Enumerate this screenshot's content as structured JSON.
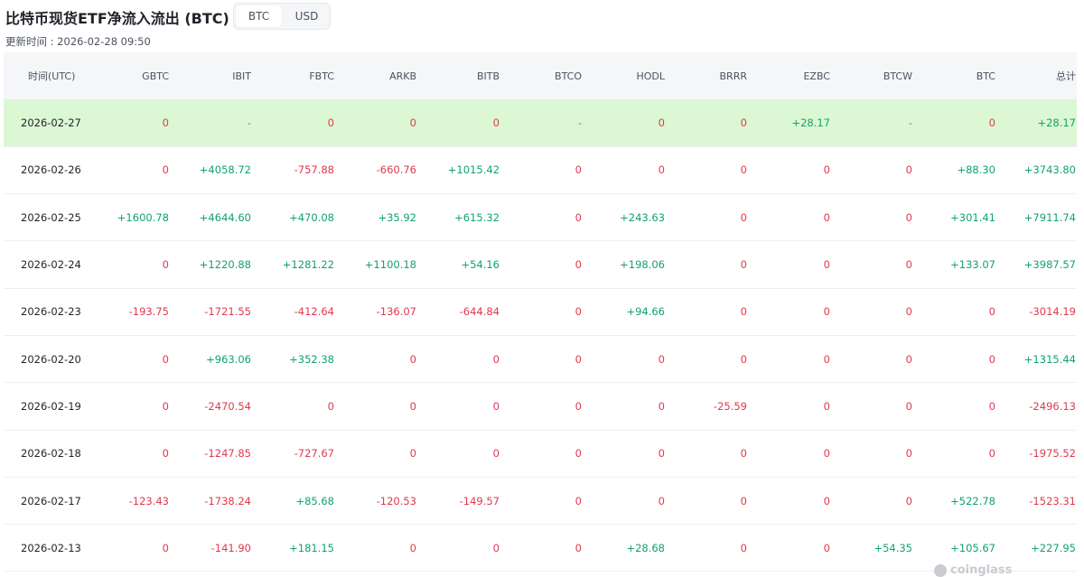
{
  "header": {
    "title": "比特币现货ETF净流入流出 (BTC)",
    "updated": "更新时间 : 2026-02-28 09:50",
    "toggle": {
      "options": [
        "BTC",
        "USD"
      ],
      "selected": "BTC"
    }
  },
  "table": {
    "columns": [
      "时间(UTC)",
      "GBTC",
      "IBIT",
      "FBTC",
      "ARKB",
      "BITB",
      "BTCO",
      "HODL",
      "BRRR",
      "EZBC",
      "BTCW",
      "BTC",
      "总计"
    ],
    "rows": [
      {
        "highlight": true,
        "cells": [
          "2026-02-27",
          "0",
          "-",
          "0",
          "0",
          "0",
          "-",
          "0",
          "0",
          "+28.17",
          "-",
          "0",
          "+28.17"
        ]
      },
      {
        "highlight": false,
        "cells": [
          "2026-02-26",
          "0",
          "+4058.72",
          "-757.88",
          "-660.76",
          "+1015.42",
          "0",
          "0",
          "0",
          "0",
          "0",
          "+88.30",
          "+3743.80"
        ]
      },
      {
        "highlight": false,
        "cells": [
          "2026-02-25",
          "+1600.78",
          "+4644.60",
          "+470.08",
          "+35.92",
          "+615.32",
          "0",
          "+243.63",
          "0",
          "0",
          "0",
          "+301.41",
          "+7911.74"
        ]
      },
      {
        "highlight": false,
        "cells": [
          "2026-02-24",
          "0",
          "+1220.88",
          "+1281.22",
          "+1100.18",
          "+54.16",
          "0",
          "+198.06",
          "0",
          "0",
          "0",
          "+133.07",
          "+3987.57"
        ]
      },
      {
        "highlight": false,
        "cells": [
          "2026-02-23",
          "-193.75",
          "-1721.55",
          "-412.64",
          "-136.07",
          "-644.84",
          "0",
          "+94.66",
          "0",
          "0",
          "0",
          "0",
          "-3014.19"
        ]
      },
      {
        "highlight": false,
        "cells": [
          "2026-02-20",
          "0",
          "+963.06",
          "+352.38",
          "0",
          "0",
          "0",
          "0",
          "0",
          "0",
          "0",
          "0",
          "+1315.44"
        ]
      },
      {
        "highlight": false,
        "cells": [
          "2026-02-19",
          "0",
          "-2470.54",
          "0",
          "0",
          "0",
          "0",
          "0",
          "-25.59",
          "0",
          "0",
          "0",
          "-2496.13"
        ]
      },
      {
        "highlight": false,
        "cells": [
          "2026-02-18",
          "0",
          "-1247.85",
          "-727.67",
          "0",
          "0",
          "0",
          "0",
          "0",
          "0",
          "0",
          "0",
          "-1975.52"
        ]
      },
      {
        "highlight": false,
        "cells": [
          "2026-02-17",
          "-123.43",
          "-1738.24",
          "+85.68",
          "-120.53",
          "-149.57",
          "0",
          "0",
          "0",
          "0",
          "0",
          "+522.78",
          "-1523.31"
        ]
      },
      {
        "highlight": false,
        "cells": [
          "2026-02-13",
          "0",
          "-141.90",
          "+181.15",
          "0",
          "0",
          "0",
          "+28.68",
          "0",
          "0",
          "+54.35",
          "+105.67",
          "+227.95"
        ]
      }
    ]
  },
  "watermark": {
    "text": "coinglass",
    "icon": "coinglass-logo-icon"
  },
  "colors": {
    "positive": "#12a36a",
    "negative": "#e0394e",
    "highlight_row": "#dcf7d4",
    "header_bg": "#f5f6f8"
  }
}
